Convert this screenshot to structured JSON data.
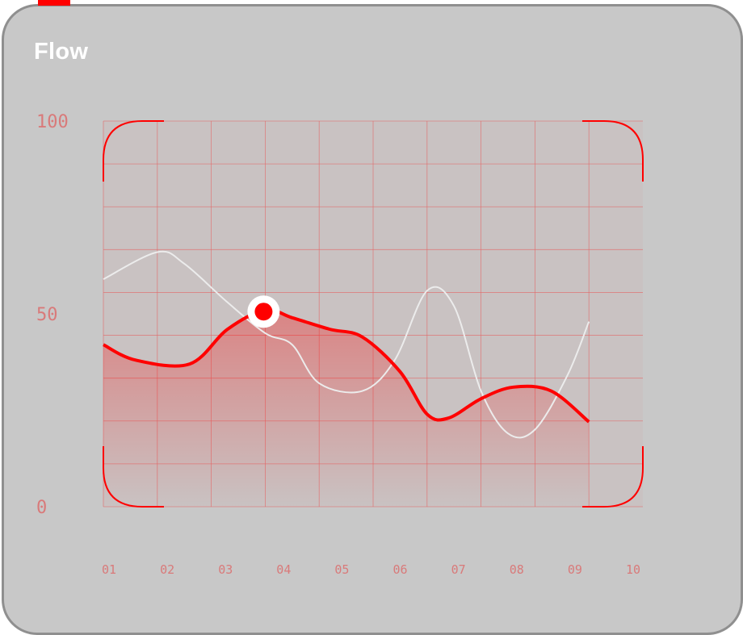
{
  "header": {
    "title": "Flow"
  },
  "colors": {
    "accent": "#ff0000",
    "card_bg": "#c8c8c8",
    "card_border": "#8f8f8f",
    "grid": "#e26a6a",
    "tick": "#d97a7a",
    "secondary_line": "#ececec"
  },
  "chart_data": {
    "type": "line",
    "categories": [
      "01",
      "02",
      "03",
      "04",
      "05",
      "06",
      "07",
      "08",
      "09",
      "10"
    ],
    "ylim": [
      0,
      100
    ],
    "yticks": [
      "100",
      "50",
      "0"
    ],
    "grid": true,
    "series": [
      {
        "role": "primary",
        "color": "#ff0000",
        "x": [
          0,
          0.6,
          1.6,
          2.3,
          3.0,
          3.5,
          4.2,
          4.8,
          5.5,
          6.0,
          6.4,
          7.0,
          7.6,
          8.3,
          9.0
        ],
        "values": [
          42,
          38,
          37,
          46,
          51,
          49,
          46,
          44,
          35,
          24,
          23,
          28,
          31,
          30,
          22
        ]
      },
      {
        "role": "secondary",
        "color": "#ececec",
        "x": [
          0,
          1.0,
          1.5,
          2.3,
          3.0,
          3.5,
          4.0,
          4.8,
          5.4,
          6.0,
          6.5,
          7.0,
          7.5,
          8.0,
          8.6,
          9.0
        ],
        "values": [
          59,
          66,
          63,
          53,
          45,
          42,
          32,
          30,
          38,
          56,
          52,
          30,
          19,
          20,
          34,
          48
        ]
      }
    ],
    "highlight": {
      "category": "04",
      "value": 51
    }
  }
}
